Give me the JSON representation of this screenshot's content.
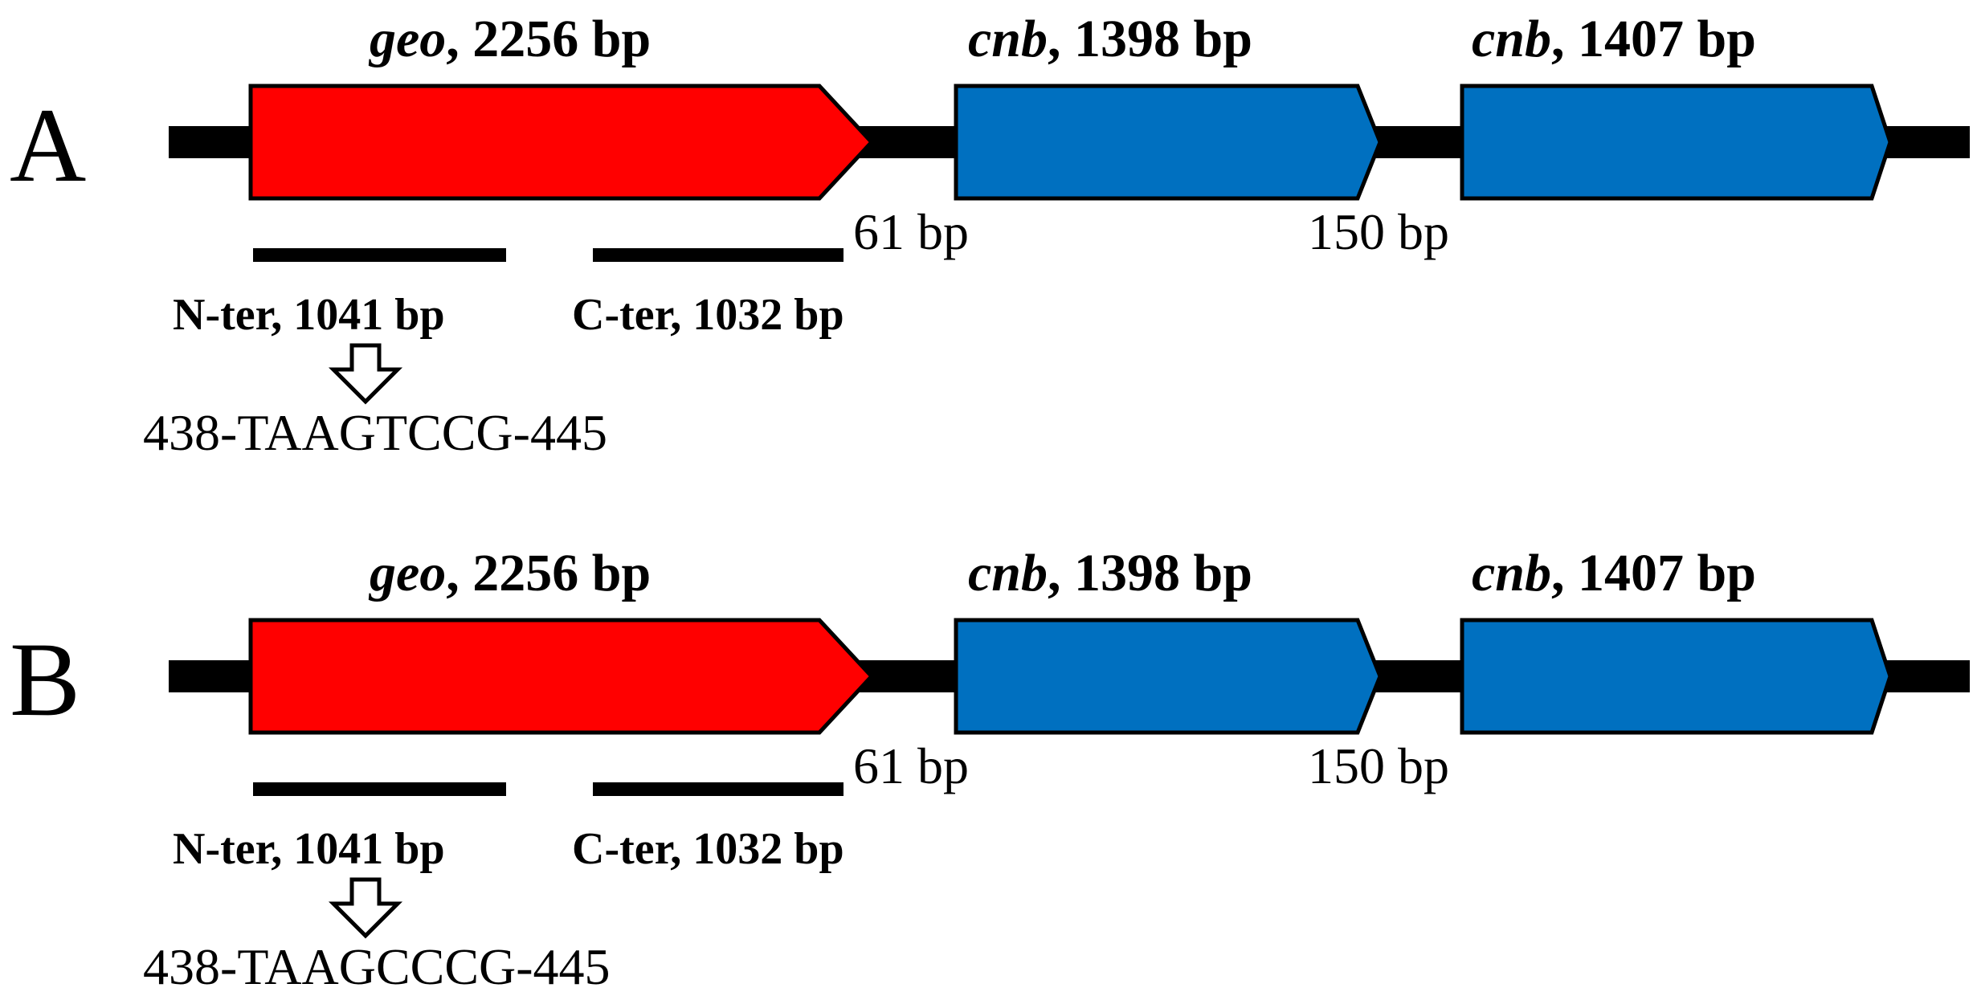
{
  "colors": {
    "geo_fill": "#ff0000",
    "cnb_fill": "#0070c0",
    "outline": "#000000",
    "line": "#000000",
    "background": "#ffffff"
  },
  "panels": [
    {
      "id": "A",
      "letter": "A",
      "genes": [
        {
          "name": "geo",
          "size": ", 2256 bp",
          "color_key": "geo_fill"
        },
        {
          "name": "cnb",
          "size": ", 1398 bp",
          "color_key": "cnb_fill"
        },
        {
          "name": "cnb",
          "size": ", 1407 bp",
          "color_key": "cnb_fill"
        }
      ],
      "spacers": [
        "61 bp",
        "150 bp"
      ],
      "fragments": [
        {
          "label": "N-ter, 1041 bp"
        },
        {
          "label": "C-ter, 1032 bp"
        }
      ],
      "arrow_icon": "down-arrow-icon",
      "sequence": "438-TAAGTCCG-445"
    },
    {
      "id": "B",
      "letter": "B",
      "genes": [
        {
          "name": "geo",
          "size": ", 2256 bp",
          "color_key": "geo_fill"
        },
        {
          "name": "cnb",
          "size": ", 1398 bp",
          "color_key": "cnb_fill"
        },
        {
          "name": "cnb",
          "size": ", 1407 bp",
          "color_key": "cnb_fill"
        }
      ],
      "spacers": [
        "61 bp",
        "150 bp"
      ],
      "fragments": [
        {
          "label": "N-ter, 1041 bp"
        },
        {
          "label": "C-ter, 1032 bp"
        }
      ],
      "arrow_icon": "down-arrow-icon",
      "sequence": "438-TAAGCCCG-445"
    }
  ]
}
